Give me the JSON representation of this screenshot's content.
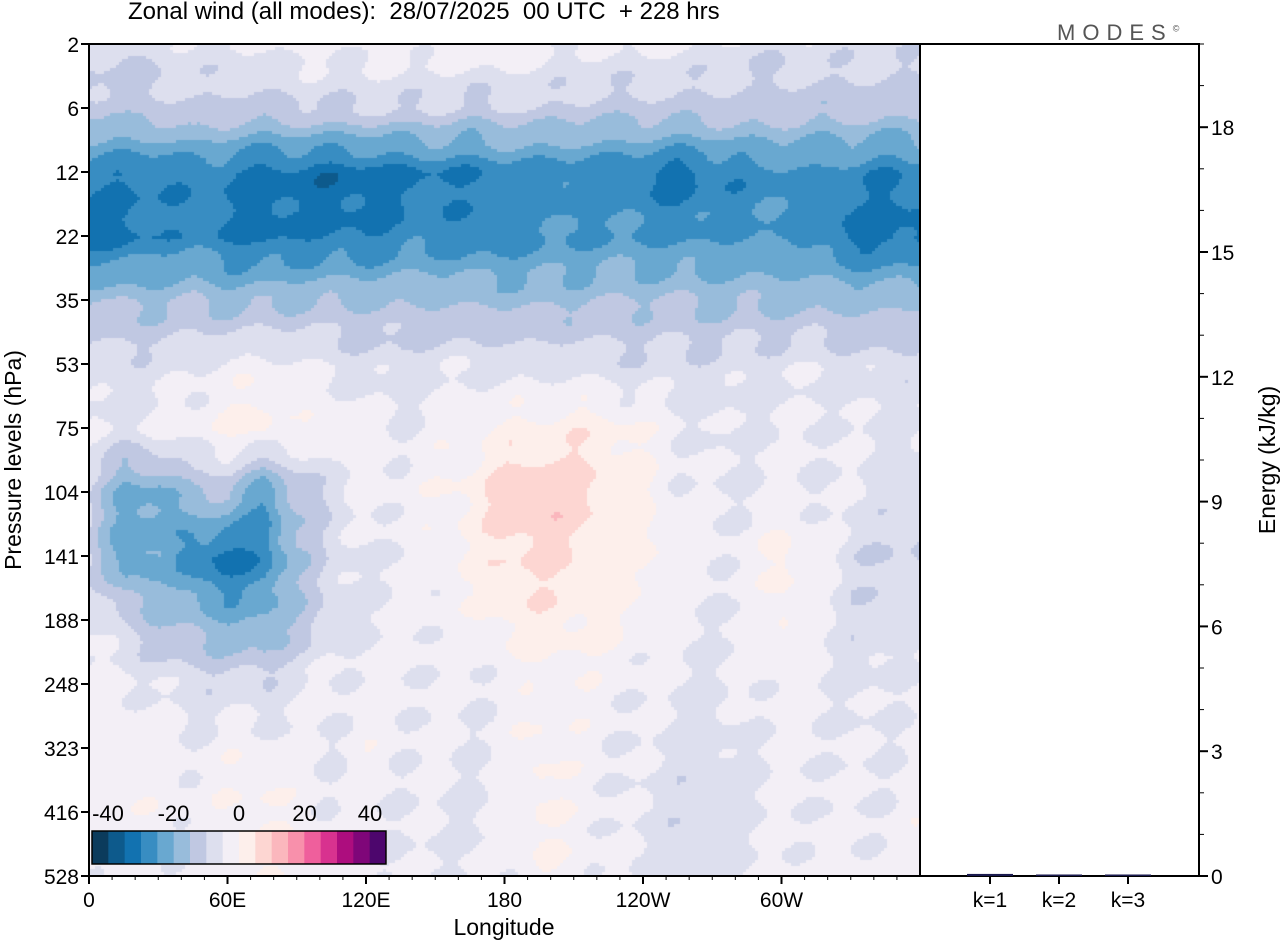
{
  "title": "Zonal wind (all modes):  28/07/2025  00 UTC  + 228 hrs",
  "logo": "MODES",
  "chart_data": [
    {
      "type": "heatmap",
      "title": "Zonal wind (all modes):  28/07/2025  00 UTC  + 228 hrs",
      "xlabel": "Longitude",
      "ylabel": "Pressure levels (hPa)",
      "x_ticks": [
        "0",
        "60E",
        "120E",
        "180",
        "120W",
        "60W"
      ],
      "x_tick_values": [
        0,
        60,
        120,
        180,
        240,
        300
      ],
      "xlim": [
        0,
        360
      ],
      "y_ticks": [
        "2",
        "6",
        "12",
        "22",
        "35",
        "53",
        "75",
        "104",
        "141",
        "188",
        "248",
        "323",
        "416",
        "528"
      ],
      "lon": [
        0,
        15,
        30,
        45,
        60,
        75,
        90,
        105,
        120,
        135,
        150,
        165,
        180,
        195,
        210,
        225,
        240,
        255,
        270,
        285,
        300,
        315,
        330,
        345
      ],
      "z": [
        [
          -8,
          -10,
          -8,
          -6,
          -6,
          -4,
          -3,
          -3,
          -3,
          -2,
          -3,
          -2,
          -2,
          -3,
          -5,
          -5,
          -4,
          -5,
          -6,
          -8,
          -8,
          -6,
          -8,
          -8
        ],
        [
          -13,
          -12,
          -12,
          -10,
          -12,
          -12,
          -11,
          -10,
          -10,
          -10,
          -10,
          -12,
          -10,
          -10,
          -12,
          -12,
          -12,
          -12,
          -12,
          -12,
          -12,
          -14,
          -12,
          -13
        ],
        [
          -28,
          -30,
          -30,
          -28,
          -30,
          -33,
          -32,
          -34,
          -33,
          -32,
          -30,
          -30,
          -28,
          -28,
          -28,
          -28,
          -30,
          -33,
          -30,
          -28,
          -27,
          -26,
          -28,
          -30
        ],
        [
          -32,
          -32,
          -28,
          -28,
          -30,
          -32,
          -30,
          -30,
          -30,
          -28,
          -27,
          -28,
          -27,
          -26,
          -25,
          -25,
          -25,
          -26,
          -25,
          -25,
          -25,
          -28,
          -32,
          -32
        ],
        [
          -15,
          -16,
          -16,
          -15,
          -17,
          -16,
          -15,
          -15,
          -15,
          -15,
          -15,
          -16,
          -16,
          -17,
          -16,
          -15,
          -15,
          -15,
          -16,
          -16,
          -16,
          -16,
          -16,
          -17
        ],
        [
          -8,
          -8,
          -7,
          -6,
          -3,
          -3,
          -4,
          -6,
          -7,
          -8,
          -6,
          -6,
          -6,
          -7,
          -6,
          -8,
          -8,
          -8,
          -8,
          -7,
          -6,
          -6,
          -7,
          -8
        ],
        [
          -5,
          -6,
          -3,
          -2,
          1,
          2,
          -2,
          -1,
          -3,
          -5,
          -3,
          -2,
          1,
          2,
          3,
          2,
          -1,
          -4,
          -6,
          -5,
          -5,
          -4,
          -5,
          -6
        ],
        [
          -10,
          -22,
          -22,
          -15,
          -15,
          -25,
          -14,
          -8,
          -3,
          -3,
          -1,
          2,
          8,
          10,
          8,
          4,
          1,
          -4,
          -5,
          -5,
          -3,
          -5,
          -5,
          -7
        ],
        [
          -10,
          -25,
          -20,
          -30,
          -32,
          -30,
          -15,
          -8,
          -5,
          -5,
          -2,
          1,
          5,
          6,
          4,
          2,
          2,
          -2,
          -4,
          -3,
          2,
          -2,
          -8,
          -10
        ],
        [
          -5,
          -10,
          -15,
          -17,
          -20,
          -20,
          -14,
          -8,
          -5,
          -4,
          -3,
          -2,
          2,
          3,
          2,
          1,
          -2,
          -4,
          -5,
          -5,
          1,
          -4,
          -8,
          -9
        ],
        [
          -3,
          -4,
          -5,
          -8,
          -8,
          -9,
          -5,
          -4,
          -3,
          -4,
          -4,
          -5,
          -3,
          -2,
          -1,
          -3,
          -4,
          -5,
          -6,
          -4,
          -3,
          -4,
          -6,
          -6
        ],
        [
          -3,
          -2,
          -3,
          -4,
          -2,
          -2,
          -4,
          -5,
          -2,
          -4,
          -4,
          -5,
          -3,
          1,
          -2,
          -4,
          -5,
          -7,
          -8,
          -5,
          -4,
          -4,
          -5,
          -5
        ],
        [
          -2,
          -1,
          -2,
          -3,
          -1,
          1,
          -2,
          -4,
          -3,
          -5,
          -5,
          -6,
          -4,
          1,
          -2,
          -4,
          -6,
          -8,
          -9,
          -6,
          -4,
          -4,
          -5,
          -4
        ],
        [
          -3,
          -2,
          -3,
          -4,
          -2,
          -1,
          -3,
          -5,
          -4,
          -6,
          -5,
          -5,
          -4,
          0,
          -2,
          -4,
          -6,
          -8,
          -8,
          -5,
          -4,
          -3,
          -4,
          -3
        ]
      ],
      "colorbar": {
        "ticks": [
          "-40",
          "-20",
          "0",
          "20",
          "40"
        ],
        "levels_min": -45,
        "levels_step": 5,
        "colors": [
          "#0b3b5c",
          "#0d5a8c",
          "#1272b0",
          "#388dc2",
          "#69a8d0",
          "#98bcdb",
          "#c0c8e2",
          "#dddfee",
          "#f3eff6",
          "#fdefeb",
          "#fdd6d2",
          "#fbb7bd",
          "#f890ab",
          "#ef5f9c",
          "#d8328f",
          "#ad0d7e",
          "#7f0679",
          "#4d066d"
        ]
      },
      "ylabel_right": "Energy (kJ/kg)",
      "energy_ticks": [
        "0",
        "3",
        "6",
        "9",
        "12",
        "15",
        "18"
      ],
      "energy_ylim": [
        0,
        20
      ],
      "bars": {
        "categories": [
          "k=1",
          "k=2",
          "k=3"
        ],
        "values": [
          0.05,
          0.01,
          0.01
        ],
        "color": "#1a1a4e"
      }
    }
  ]
}
